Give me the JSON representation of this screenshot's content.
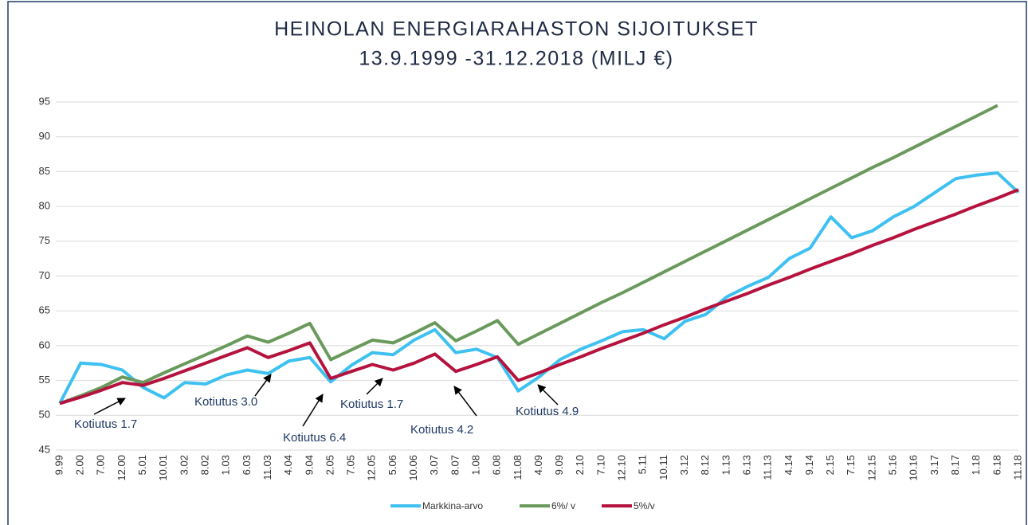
{
  "chart_data": {
    "type": "line",
    "title": "HEINOLAN ENERGIARAHASTON SIJOITUKSET",
    "subtitle": "13.9.1999  -31.12.2018 (MILJ €)",
    "categories": [
      "9.99",
      "2.00",
      "7.00",
      "12.00",
      "5.01",
      "10.01",
      "3.02",
      "8.02",
      "1.03",
      "6.03",
      "11.03",
      "4.04",
      "9.04",
      "2.05",
      "7.05",
      "12.05",
      "5.06",
      "10.06",
      "3.07",
      "8.07",
      "1.08",
      "6.08",
      "11.08",
      "4.09",
      "9.09",
      "2.10",
      "7.10",
      "12.10",
      "5.11",
      "10.11",
      "3.12",
      "8.12",
      "1.13",
      "6.13",
      "11.13",
      "4.14",
      "9.14",
      "2.15",
      "7.15",
      "12.15",
      "5.16",
      "10.16",
      "3.17",
      "8.17",
      "1.18",
      "6.18",
      "11.18"
    ],
    "series": [
      {
        "name": "Markkina-arvo",
        "color": "#3ec1f0",
        "values": [
          51.7,
          57.5,
          57.3,
          56.5,
          54.0,
          52.5,
          54.7,
          54.5,
          55.8,
          56.5,
          56.0,
          57.8,
          58.3,
          54.8,
          57.2,
          59.0,
          58.7,
          60.8,
          62.3,
          59.0,
          59.5,
          58.3,
          53.5,
          55.5,
          58.0,
          59.5,
          60.7,
          62.0,
          62.3,
          61.0,
          63.5,
          64.5,
          67.0,
          68.5,
          69.8,
          72.5,
          74.0,
          78.5,
          75.5,
          76.5,
          78.5,
          80.0,
          82.0,
          84.0,
          84.5,
          84.8,
          82.0
        ]
      },
      {
        "name": "6%/ v",
        "color": "#6a9a5b",
        "values": [
          51.7,
          52.8,
          54.0,
          55.5,
          54.7,
          56.1,
          57.4,
          58.7,
          60.0,
          61.4,
          60.5,
          61.8,
          63.2,
          58.0,
          59.4,
          60.8,
          60.4,
          61.8,
          63.3,
          60.7,
          62.1,
          63.6,
          60.2,
          61.7,
          63.2,
          64.7,
          66.2,
          67.6,
          69.1,
          70.6,
          72.1,
          73.6,
          75.1,
          76.6,
          78.1,
          79.6,
          81.1,
          82.6,
          84.1,
          85.6,
          87.0,
          88.5,
          90.0,
          91.5,
          93.0,
          94.5,
          null
        ]
      },
      {
        "name": "5%/v",
        "color": "#b5123e",
        "values": [
          51.7,
          52.6,
          53.6,
          54.7,
          54.3,
          55.3,
          56.4,
          57.5,
          58.6,
          59.7,
          58.3,
          59.3,
          60.4,
          55.3,
          56.3,
          57.3,
          56.5,
          57.5,
          58.8,
          56.3,
          57.3,
          58.4,
          55.0,
          56.1,
          57.3,
          58.4,
          59.6,
          60.7,
          61.8,
          63.0,
          64.1,
          65.3,
          66.4,
          67.5,
          68.7,
          69.8,
          71.0,
          72.1,
          73.2,
          74.4,
          75.5,
          76.7,
          77.8,
          78.9,
          80.1,
          81.2,
          82.4
        ]
      }
    ],
    "ylim": [
      45,
      95
    ],
    "yticks": [
      45,
      50,
      55,
      60,
      65,
      70,
      75,
      80,
      85,
      90,
      95
    ],
    "grid": true,
    "legend": "bottom",
    "annotations": [
      "Kotiutus 1.7",
      "Kotiutus 3.0",
      "Kotiutus 6.4",
      "Kotiutus 1.7",
      "Kotiutus 4.2",
      "Kotiutus 4.9"
    ]
  }
}
